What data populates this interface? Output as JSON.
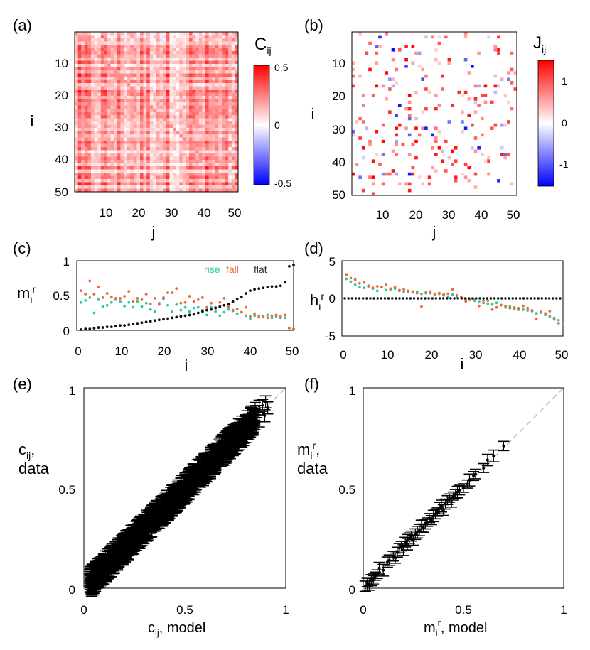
{
  "colors": {
    "rise": "#2ec9a0",
    "fall": "#ee6a3a",
    "flat": "#111111",
    "neg": "#0000ff",
    "pos": "#ff0000"
  },
  "panels": {
    "a": {
      "label": "(a)",
      "cbar_title": "C",
      "cbar_sub": "ij",
      "cbar_ticks": [
        "0.5",
        "0",
        "-0.5"
      ],
      "xlabel": "j",
      "ylabel": "i",
      "xticks": [
        "10",
        "20",
        "30",
        "40",
        "50"
      ],
      "yticks": [
        "10",
        "20",
        "30",
        "40",
        "50"
      ]
    },
    "b": {
      "label": "(b)",
      "cbar_title": "J",
      "cbar_sub": "ij",
      "cbar_ticks": [
        "1",
        "0",
        "-1"
      ],
      "xlabel": "j",
      "ylabel": "i",
      "xticks": [
        "10",
        "20",
        "30",
        "40",
        "50"
      ],
      "yticks": [
        "10",
        "20",
        "30",
        "40",
        "50"
      ]
    },
    "c": {
      "label": "(c)",
      "ylabel": "m",
      "ylabel_sub": "i",
      "ylabel_sup": "r",
      "xlabel": "i",
      "legend": [
        "rise",
        "fall",
        "flat"
      ],
      "xticks": [
        "0",
        "10",
        "20",
        "30",
        "40",
        "50"
      ],
      "yticks": [
        "1",
        "0.5",
        "0"
      ]
    },
    "d": {
      "label": "(d)",
      "ylabel": "h",
      "ylabel_sub": "i",
      "ylabel_sup": "r",
      "xlabel": "i",
      "xticks": [
        "0",
        "10",
        "20",
        "30",
        "40",
        "50"
      ],
      "yticks": [
        "5",
        "0",
        "-5"
      ]
    },
    "e": {
      "label": "(e)",
      "ylabel_line1_main": "c",
      "ylabel_line1_sub": "ij",
      "ylabel_line1_tail": ",",
      "ylabel_line2": "data",
      "xlabel_main": "c",
      "xlabel_sub": "ij",
      "xlabel_tail": ", model",
      "xticks": [
        "0",
        "0.5",
        "1"
      ],
      "yticks": [
        "1",
        "0.5",
        "0"
      ]
    },
    "f": {
      "label": "(f)",
      "ylabel_line1_main": "m",
      "ylabel_line1_sub": "i",
      "ylabel_line1_sup": "r",
      "ylabel_line1_tail": ",",
      "ylabel_line2": "data",
      "xlabel_main": "m",
      "xlabel_sub": "i",
      "xlabel_sup": "r",
      "xlabel_tail": ", model",
      "xticks": [
        "0",
        "0.5",
        "1"
      ],
      "yticks": [
        "1",
        "0.5",
        "0"
      ]
    }
  },
  "chart_data": [
    {
      "id": "a",
      "type": "heatmap",
      "title": "C_ij",
      "xlabel": "j",
      "ylabel": "i",
      "size": 50,
      "clim": [
        -0.5,
        0.5
      ],
      "colormap": "blue-white-red"
    },
    {
      "id": "b",
      "type": "heatmap",
      "title": "J_ij",
      "xlabel": "j",
      "ylabel": "i",
      "size": 50,
      "clim": [
        -1.5,
        1.5
      ],
      "colormap": "blue-white-red"
    },
    {
      "id": "c",
      "type": "scatter",
      "xlabel": "i",
      "ylabel": "m_i^r",
      "xlim": [
        0,
        50
      ],
      "ylim": [
        0,
        1
      ],
      "x": [
        1,
        2,
        3,
        4,
        5,
        6,
        7,
        8,
        9,
        10,
        11,
        12,
        13,
        14,
        15,
        16,
        17,
        18,
        19,
        20,
        21,
        22,
        23,
        24,
        25,
        26,
        27,
        28,
        29,
        30,
        31,
        32,
        33,
        34,
        35,
        36,
        37,
        38,
        39,
        40,
        41,
        42,
        43,
        44,
        45,
        46,
        47,
        48,
        49,
        50
      ],
      "series": [
        {
          "name": "rise",
          "values": [
            0.4,
            0.43,
            0.47,
            0.25,
            0.44,
            0.34,
            0.36,
            0.4,
            0.44,
            0.41,
            0.35,
            0.4,
            0.33,
            0.41,
            0.34,
            0.39,
            0.3,
            0.27,
            0.39,
            0.45,
            0.36,
            0.27,
            0.37,
            0.29,
            0.33,
            0.27,
            0.32,
            0.33,
            0.29,
            0.22,
            0.33,
            0.27,
            0.21,
            0.26,
            0.3,
            0.29,
            0.24,
            0.26,
            0.21,
            0.17,
            0.21,
            0.21,
            0.19,
            0.22,
            0.18,
            0.2,
            0.18,
            0.18,
            0.03,
            0.02
          ]
        },
        {
          "name": "fall",
          "values": [
            0.57,
            0.52,
            0.71,
            0.52,
            0.62,
            0.47,
            0.53,
            0.48,
            0.46,
            0.46,
            0.49,
            0.56,
            0.41,
            0.46,
            0.44,
            0.52,
            0.38,
            0.46,
            0.37,
            0.47,
            0.54,
            0.54,
            0.6,
            0.39,
            0.4,
            0.49,
            0.41,
            0.44,
            0.47,
            0.33,
            0.39,
            0.33,
            0.4,
            0.46,
            0.34,
            0.28,
            0.31,
            0.26,
            0.33,
            0.2,
            0.24,
            0.19,
            0.2,
            0.18,
            0.21,
            0.22,
            0.2,
            0.22,
            0.03,
            0.02
          ]
        },
        {
          "name": "flat",
          "values": [
            0.01,
            0.02,
            0.02,
            0.03,
            0.04,
            0.04,
            0.05,
            0.05,
            0.06,
            0.07,
            0.07,
            0.08,
            0.09,
            0.1,
            0.11,
            0.12,
            0.13,
            0.14,
            0.15,
            0.16,
            0.17,
            0.18,
            0.19,
            0.2,
            0.21,
            0.22,
            0.23,
            0.25,
            0.27,
            0.29,
            0.3,
            0.32,
            0.34,
            0.36,
            0.38,
            0.41,
            0.45,
            0.48,
            0.53,
            0.57,
            0.59,
            0.6,
            0.61,
            0.62,
            0.63,
            0.63,
            0.64,
            0.69,
            0.92,
            0.94
          ]
        }
      ]
    },
    {
      "id": "d",
      "type": "scatter",
      "xlabel": "i",
      "ylabel": "h_i^r",
      "xlim": [
        0,
        50
      ],
      "ylim": [
        -5,
        5
      ],
      "x": [
        1,
        2,
        3,
        4,
        5,
        6,
        7,
        8,
        9,
        10,
        11,
        12,
        13,
        14,
        15,
        16,
        17,
        18,
        19,
        20,
        21,
        22,
        23,
        24,
        25,
        26,
        27,
        28,
        29,
        30,
        31,
        32,
        33,
        34,
        35,
        36,
        37,
        38,
        39,
        40,
        41,
        42,
        43,
        44,
        45,
        46,
        47,
        48,
        49,
        50
      ],
      "series": [
        {
          "name": "rise",
          "values": [
            2.6,
            2.2,
            1.8,
            1.5,
            1.4,
            1.7,
            1.3,
            1.0,
            1.5,
            1.1,
            1.2,
            1.3,
            1.0,
            0.9,
            0.9,
            0.8,
            0.9,
            0.6,
            0.7,
            0.7,
            0.5,
            0.6,
            0.4,
            0.2,
            0.5,
            0.2,
            0.1,
            -0.1,
            -0.2,
            -0.3,
            -0.5,
            -0.3,
            -0.7,
            -0.8,
            -0.6,
            -0.9,
            -1.2,
            -1.1,
            -1.4,
            -1.3,
            -1.5,
            -1.6,
            -1.7,
            -2.0,
            -1.9,
            -2.2,
            -2.4,
            -2.6,
            -2.9,
            -3.4
          ]
        },
        {
          "name": "fall",
          "values": [
            3.1,
            2.7,
            2.5,
            2.0,
            2.1,
            1.6,
            1.4,
            1.6,
            1.5,
            1.8,
            1.3,
            1.5,
            1.1,
            1.2,
            1.0,
            0.9,
            0.7,
            -1.1,
            0.8,
            0.9,
            0.6,
            0.7,
            0.5,
            0.6,
            1.2,
            0.4,
            0.2,
            -0.4,
            -0.2,
            -0.1,
            -1.0,
            -0.6,
            -0.3,
            -1.5,
            -1.2,
            -0.9,
            -1.0,
            -1.3,
            -1.2,
            -1.5,
            -1.0,
            -1.3,
            -1.6,
            -2.7,
            -1.8,
            -2.0,
            -1.7,
            -2.8,
            -3.3,
            -3.6
          ]
        },
        {
          "name": "flat",
          "values": [
            0,
            0,
            0,
            0,
            0,
            0,
            0,
            0,
            0,
            0,
            0,
            0,
            0,
            0,
            0,
            0,
            0,
            0,
            0,
            0,
            0,
            0,
            0,
            0,
            0,
            0,
            0,
            0,
            0,
            0,
            0,
            0,
            0,
            0,
            0,
            0,
            0,
            0,
            0,
            0,
            0,
            0,
            0,
            0,
            0,
            0,
            0,
            0,
            0,
            0
          ]
        }
      ]
    },
    {
      "id": "e",
      "type": "scatter",
      "xlabel": "c_ij, model",
      "ylabel": "c_ij, data",
      "xlim": [
        0,
        1
      ],
      "ylim": [
        0,
        1
      ],
      "description_points": "dense cloud along diagonal from 0 to 0.95 with error bars",
      "diagonal": true,
      "x_range": [
        0.02,
        0.9
      ],
      "y_range": [
        0.02,
        0.93
      ],
      "n_points": 1225,
      "errorbar": 0.03
    },
    {
      "id": "f",
      "type": "scatter",
      "xlabel": "m_i^r, model",
      "ylabel": "m_i^r, data",
      "xlim": [
        0,
        1
      ],
      "ylim": [
        0,
        1
      ],
      "diagonal": true,
      "x": [
        0.01,
        0.02,
        0.02,
        0.03,
        0.04,
        0.05,
        0.05,
        0.06,
        0.07,
        0.08,
        0.1,
        0.12,
        0.13,
        0.15,
        0.16,
        0.17,
        0.18,
        0.19,
        0.2,
        0.21,
        0.22,
        0.22,
        0.23,
        0.24,
        0.25,
        0.26,
        0.27,
        0.28,
        0.29,
        0.3,
        0.31,
        0.32,
        0.33,
        0.34,
        0.35,
        0.36,
        0.37,
        0.38,
        0.39,
        0.4,
        0.41,
        0.42,
        0.43,
        0.44,
        0.45,
        0.46,
        0.47,
        0.48,
        0.5,
        0.52,
        0.53,
        0.55,
        0.56,
        0.6,
        0.62,
        0.65,
        0.7
      ],
      "y": [
        0.01,
        0.02,
        0.03,
        0.02,
        0.04,
        0.05,
        0.04,
        0.06,
        0.07,
        0.1,
        0.09,
        0.13,
        0.14,
        0.16,
        0.15,
        0.18,
        0.2,
        0.21,
        0.19,
        0.23,
        0.22,
        0.24,
        0.25,
        0.26,
        0.24,
        0.27,
        0.28,
        0.29,
        0.31,
        0.3,
        0.32,
        0.33,
        0.35,
        0.34,
        0.36,
        0.37,
        0.38,
        0.4,
        0.41,
        0.39,
        0.42,
        0.44,
        0.45,
        0.43,
        0.46,
        0.47,
        0.48,
        0.49,
        0.5,
        0.52,
        0.54,
        0.56,
        0.57,
        0.6,
        0.64,
        0.66,
        0.71
      ]
    }
  ]
}
